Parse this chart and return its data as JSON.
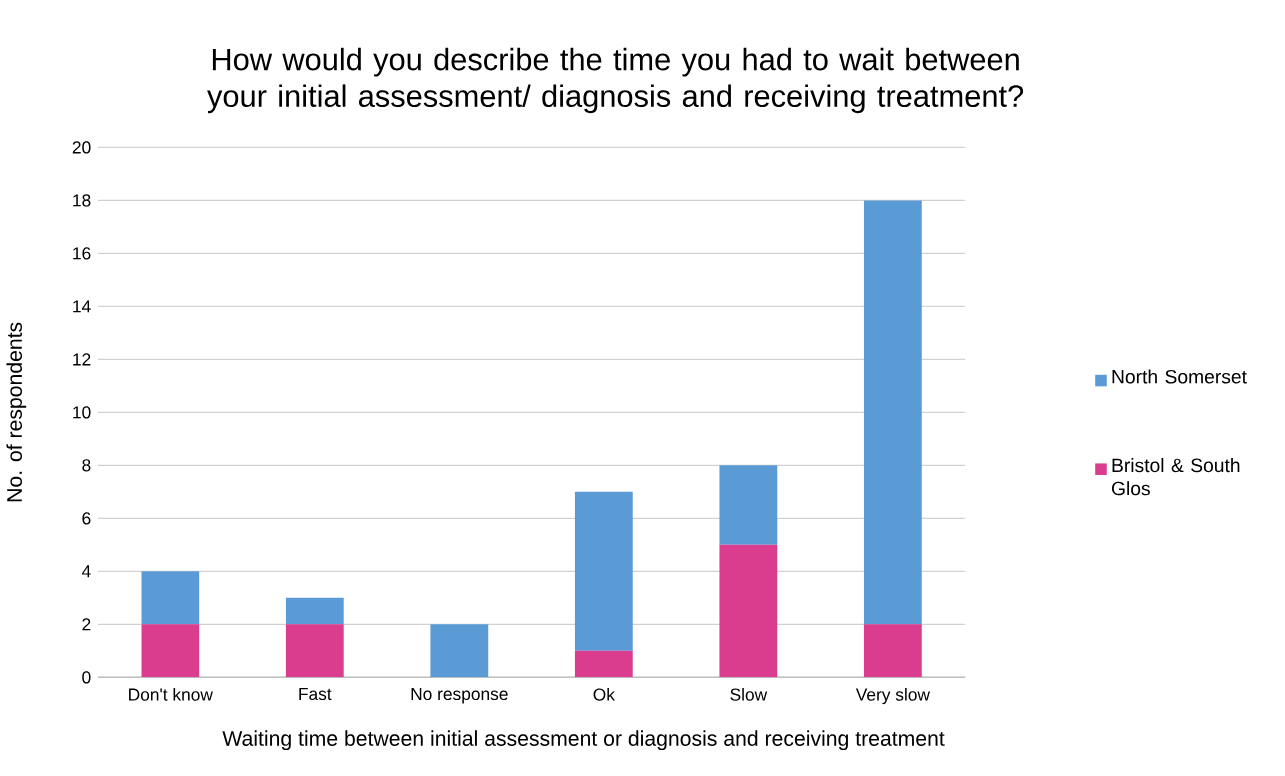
{
  "chart_data": {
    "type": "bar",
    "stacked": true,
    "title": "How would you describe the time you had to wait between your initial assessment/ diagnosis and receiving treatment?",
    "xlabel": "Waiting time between initial assessment or diagnosis and receiving treatment",
    "ylabel": "No. of respondents",
    "categories": [
      "Don't know",
      "Fast",
      "No response",
      "Ok",
      "Slow",
      "Very slow"
    ],
    "series": [
      {
        "name": "Bristol & South Glos",
        "color": "#db3d8e",
        "values": [
          2,
          2,
          0,
          1,
          5,
          2
        ]
      },
      {
        "name": "North Somerset",
        "color": "#5b9bd5",
        "values": [
          2,
          1,
          2,
          6,
          3,
          16
        ]
      }
    ],
    "ylim": [
      0,
      20
    ],
    "yticks": [
      0,
      2,
      4,
      6,
      8,
      10,
      12,
      14,
      16,
      18,
      20
    ],
    "grid": "y",
    "legend": "right"
  }
}
